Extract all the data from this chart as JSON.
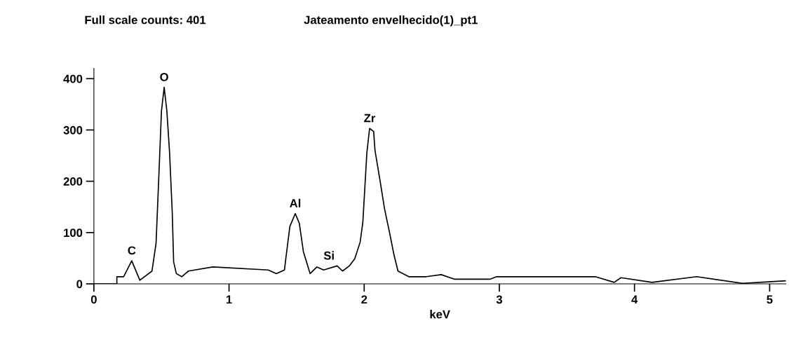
{
  "chart_data": {
    "type": "line",
    "title": "Full scale counts: 401",
    "subtitle": "Jateamento envelhecido(1)_pt1",
    "xlabel": "keV",
    "x": [
      0,
      0.17,
      0.17,
      0.22,
      0.28,
      0.34,
      0.43,
      0.46,
      0.48,
      0.5,
      0.52,
      0.54,
      0.56,
      0.58,
      0.59,
      0.61,
      0.65,
      0.7,
      0.88,
      1.29,
      1.35,
      1.41,
      1.42,
      1.45,
      1.49,
      1.52,
      1.55,
      1.6,
      1.65,
      1.7,
      1.8,
      1.84,
      1.89,
      1.93,
      1.97,
      1.99,
      2.02,
      2.04,
      2.07,
      2.08,
      2.12,
      2.15,
      2.19,
      2.22,
      2.25,
      2.33,
      2.46,
      2.57,
      2.67,
      2.93,
      2.98,
      3.24,
      3.71,
      3.85,
      3.9,
      4.13,
      4.46,
      4.8,
      5.12
    ],
    "series": [
      {
        "color": "#000000",
        "values": [
          0,
          0,
          14,
          14,
          45,
          7,
          25,
          79,
          206,
          337,
          383,
          337,
          256,
          138,
          43,
          20,
          14,
          25,
          33,
          27,
          20,
          27,
          49,
          112,
          137,
          118,
          63,
          20,
          33,
          27,
          35,
          25,
          35,
          49,
          81,
          120,
          256,
          303,
          297,
          260,
          197,
          147,
          97,
          57,
          25,
          14,
          14,
          18,
          9,
          9,
          14,
          14,
          14,
          3,
          12,
          3,
          14,
          1,
          6
        ]
      }
    ],
    "annotations": [
      {
        "text": "C",
        "x": 0.28,
        "y": 45
      },
      {
        "text": "O",
        "x": 0.52,
        "y": 383
      },
      {
        "text": "Al",
        "x": 1.49,
        "y": 137
      },
      {
        "text": "Si",
        "x": 1.74,
        "y": 35
      },
      {
        "text": "Zr",
        "x": 2.04,
        "y": 303
      }
    ],
    "xlim": [
      0,
      5.12
    ],
    "ylim": [
      0,
      420
    ],
    "xticks": [
      0,
      1,
      2,
      3,
      4,
      5
    ],
    "yticks": [
      0,
      100,
      200,
      300,
      400
    ],
    "grid": false,
    "legend": false,
    "marker": "none",
    "line_style": "solid"
  }
}
